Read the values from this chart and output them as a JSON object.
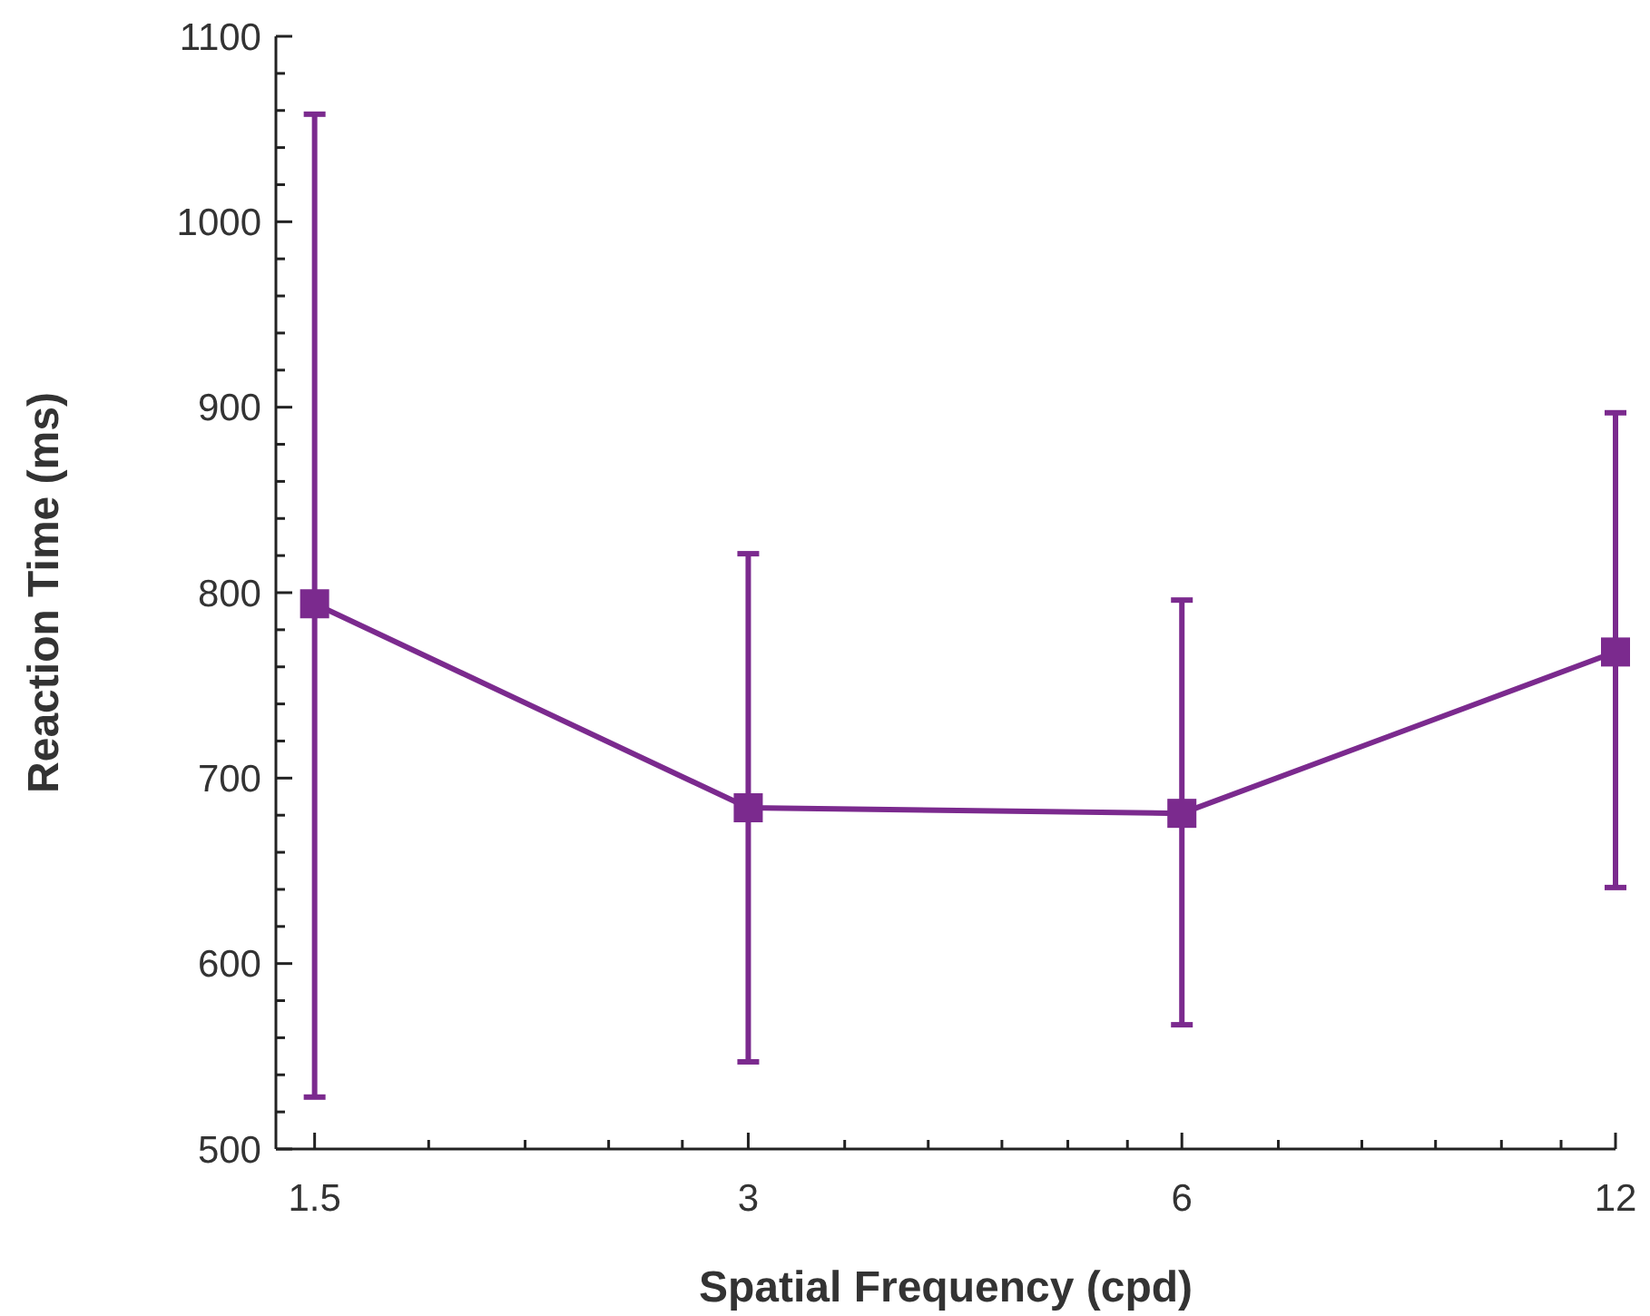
{
  "chart_data": {
    "type": "line",
    "xlabel": "Spatial Frequency (cpd)",
    "ylabel": "Reaction Time (ms)",
    "log": "x",
    "x": [
      1.5,
      3,
      6,
      12
    ],
    "series": [
      {
        "color": "#7b2a8e",
        "values": [
          794,
          684,
          681,
          768
        ],
        "errors": [
          [
            528,
            1058
          ],
          [
            547,
            821
          ],
          [
            567,
            796
          ],
          [
            641,
            897
          ]
        ]
      }
    ],
    "xlim": [
      1.41,
      12
    ],
    "xticks": [
      1.5,
      {
        "value": 1.8,
        "label": null
      },
      {
        "value": 2.1,
        "label": null
      },
      {
        "value": 2.4,
        "label": null
      },
      {
        "value": 2.7,
        "label": null
      },
      3,
      {
        "value": 3.5,
        "label": null
      },
      {
        "value": 4,
        "label": null
      },
      {
        "value": 4.5,
        "label": null
      },
      {
        "value": 5,
        "label": null
      },
      {
        "value": 5.5,
        "label": null
      },
      6,
      {
        "value": 7,
        "label": null
      },
      {
        "value": 8,
        "label": null
      },
      {
        "value": 9,
        "label": null
      },
      {
        "value": 10,
        "label": null
      },
      {
        "value": 11,
        "label": null
      },
      12
    ],
    "ylim": [
      500,
      1100
    ],
    "yticks": [
      500,
      {
        "value": 520,
        "label": null
      },
      {
        "value": 540,
        "label": null
      },
      {
        "value": 560,
        "label": null
      },
      {
        "value": 580,
        "label": null
      },
      600,
      {
        "value": 620,
        "label": null
      },
      {
        "value": 640,
        "label": null
      },
      {
        "value": 660,
        "label": null
      },
      {
        "value": 680,
        "label": null
      },
      700,
      {
        "value": 720,
        "label": null
      },
      {
        "value": 740,
        "label": null
      },
      {
        "value": 760,
        "label": null
      },
      {
        "value": 780,
        "label": null
      },
      800,
      {
        "value": 820,
        "label": null
      },
      {
        "value": 840,
        "label": null
      },
      {
        "value": 860,
        "label": null
      },
      {
        "value": 880,
        "label": null
      },
      900,
      {
        "value": 920,
        "label": null
      },
      {
        "value": 940,
        "label": null
      },
      {
        "value": 960,
        "label": null
      },
      {
        "value": 980,
        "label": null
      },
      1000,
      {
        "value": 1020,
        "label": null
      },
      {
        "value": 1040,
        "label": null
      },
      {
        "value": 1060,
        "label": null
      },
      {
        "value": 1080,
        "label": null
      },
      1100
    ],
    "marker": "square",
    "line_style": "solid",
    "grid": false
  }
}
